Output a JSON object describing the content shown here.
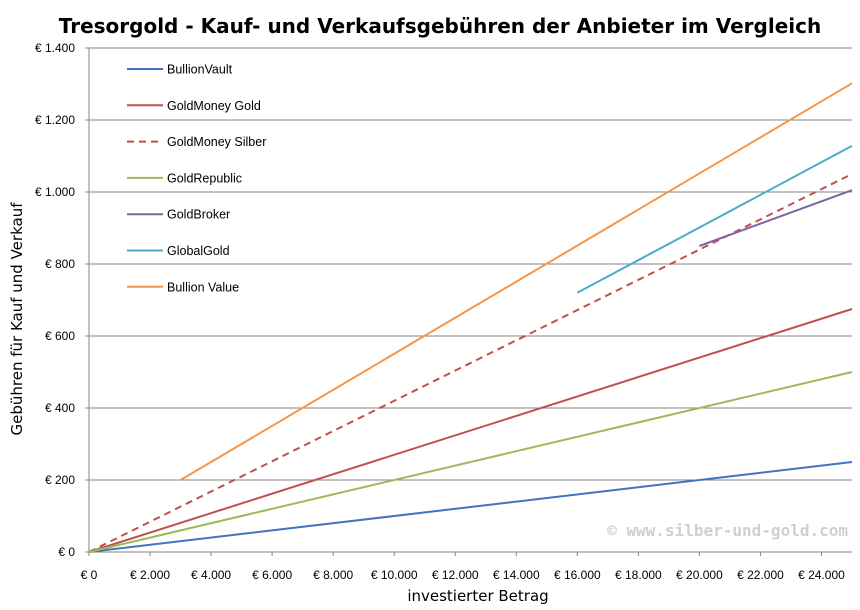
{
  "chart_data": {
    "type": "line",
    "title": "Tresorgold - Kauf- und Verkaufsgebühren der Anbieter im Vergleich",
    "xlabel": "investierter Betrag",
    "ylabel": "Gebühren für Kauf und Verkauf",
    "xlim": [
      0,
      25000
    ],
    "ylim": [
      0,
      1400
    ],
    "x_ticks": [
      0,
      2000,
      4000,
      6000,
      8000,
      10000,
      12000,
      14000,
      16000,
      18000,
      20000,
      22000,
      24000
    ],
    "x_tick_labels": [
      "€ 0",
      "€ 2.000",
      "€ 4.000",
      "€ 6.000",
      "€ 8.000",
      "€ 10.000",
      "€ 12.000",
      "€ 14.000",
      "€ 16.000",
      "€ 18.000",
      "€ 20.000",
      "€ 22.000",
      "€ 24.000"
    ],
    "y_ticks": [
      0,
      200,
      400,
      600,
      800,
      1000,
      1200,
      1400
    ],
    "y_tick_labels": [
      "€ 0",
      "€ 200",
      "€ 400",
      "€ 600",
      "€ 800",
      "€ 1.000",
      "€ 1.200",
      "€ 1.400"
    ],
    "grid": "horizontal",
    "legend_position": "top-left",
    "watermark": "© www.silber-und-gold.com",
    "series": [
      {
        "name": "BullionVault",
        "color": "#4472c4",
        "dash": "solid",
        "x": [
          0,
          25000
        ],
        "y": [
          0,
          250
        ]
      },
      {
        "name": "GoldMoney Gold",
        "color": "#c0504d",
        "dash": "solid",
        "x": [
          0,
          25000
        ],
        "y": [
          0,
          675
        ]
      },
      {
        "name": "GoldMoney Silber",
        "color": "#c0504d",
        "dash": "dashed",
        "x": [
          0,
          25000
        ],
        "y": [
          0,
          1050
        ]
      },
      {
        "name": "GoldRepublic",
        "color": "#9bbb59",
        "dash": "solid",
        "x": [
          0,
          25000
        ],
        "y": [
          0,
          500
        ]
      },
      {
        "name": "GoldBroker",
        "color": "#8064a2",
        "dash": "solid",
        "x": [
          20000,
          25000
        ],
        "y": [
          850,
          1005
        ]
      },
      {
        "name": "GlobalGold",
        "color": "#4bacc6",
        "dash": "solid",
        "x": [
          16000,
          25000
        ],
        "y": [
          720,
          1128
        ]
      },
      {
        "name": "Bullion Value",
        "color": "#f79646",
        "dash": "solid",
        "x": [
          3000,
          25000
        ],
        "y": [
          200,
          1302
        ]
      }
    ]
  }
}
